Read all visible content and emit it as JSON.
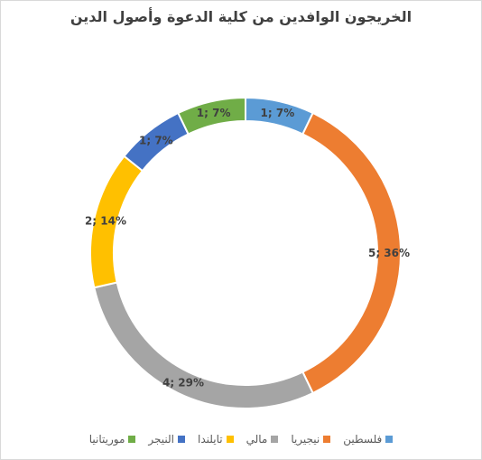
{
  "chart_data": {
    "type": "donut",
    "title": "الخريجون الوافدين من كلية الدعوة وأصول الدين",
    "series": [
      {
        "category": "فلسطين",
        "value": 1,
        "percent": "7%",
        "label": "1; 7%",
        "color": "#5b9bd5"
      },
      {
        "category": "نيجيريا",
        "value": 5,
        "percent": "36%",
        "label": "5; 36%",
        "color": "#ed7d31"
      },
      {
        "category": "مالي",
        "value": 4,
        "percent": "29%",
        "label": "4; 29%",
        "color": "#a5a5a5"
      },
      {
        "category": "تايلندا",
        "value": 2,
        "percent": "14%",
        "label": "2; 14%",
        "color": "#ffc000"
      },
      {
        "category": "النيجر",
        "value": 1,
        "percent": "7%",
        "label": "1; 7%",
        "color": "#4472c4"
      },
      {
        "category": "موريتانيا",
        "value": 1,
        "percent": "7%",
        "label": "1; 7%",
        "color": "#70ad47"
      }
    ],
    "legend_position": "bottom"
  }
}
